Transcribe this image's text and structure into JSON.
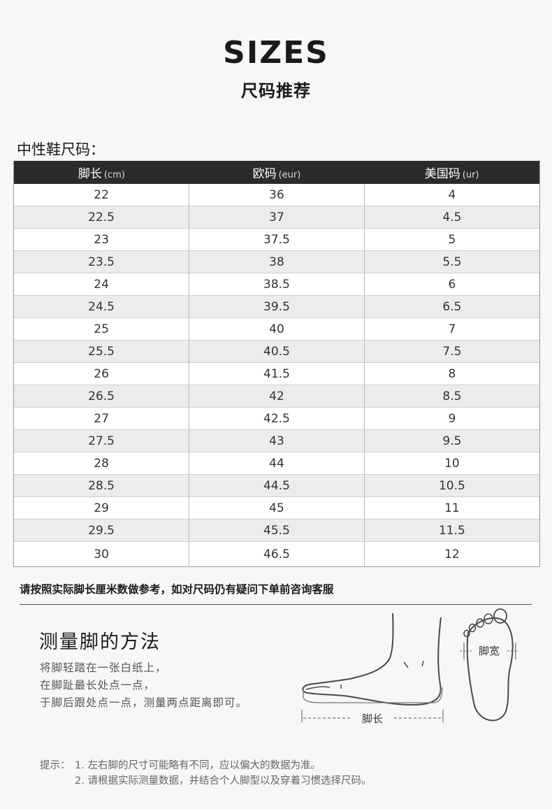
{
  "title": "SIZES",
  "subtitle": "尺码推荐",
  "section_label": "中性鞋尺码：",
  "table": {
    "headers": [
      {
        "label": "脚长",
        "unit": "(cm)"
      },
      {
        "label": "欧码",
        "unit": "(eur)"
      },
      {
        "label": "美国码",
        "unit": "(ur)"
      }
    ],
    "rows": [
      [
        "22",
        "36",
        "4"
      ],
      [
        "22.5",
        "37",
        "4.5"
      ],
      [
        "23",
        "37.5",
        "5"
      ],
      [
        "23.5",
        "38",
        "5.5"
      ],
      [
        "24",
        "38.5",
        "6"
      ],
      [
        "24.5",
        "39.5",
        "6.5"
      ],
      [
        "25",
        "40",
        "7"
      ],
      [
        "25.5",
        "40.5",
        "7.5"
      ],
      [
        "26",
        "41.5",
        "8"
      ],
      [
        "26.5",
        "42",
        "8.5"
      ],
      [
        "27",
        "42.5",
        "9"
      ],
      [
        "27.5",
        "43",
        "9.5"
      ],
      [
        "28",
        "44",
        "10"
      ],
      [
        "28.5",
        "44.5",
        "10.5"
      ],
      [
        "29",
        "45",
        "11"
      ],
      [
        "29.5",
        "45.5",
        "11.5"
      ],
      [
        "30",
        "46.5",
        "12"
      ]
    ]
  },
  "note": "请按照实际脚长厘米数做参考，如对尺码仍有疑问下单前咨询客服",
  "measure": {
    "title": "测量脚的方法",
    "lines": [
      "将脚轻踏在一张白纸上，",
      "在脚趾最长处点一点，",
      "于脚后跟处点一点，测量两点距离即可。"
    ],
    "foot_length_label": "脚长",
    "foot_width_label": "脚宽"
  },
  "tips": {
    "lead": "提示：",
    "items": [
      "1. 左右脚的尺寸可能略有不同，应以偏大的数据为准。",
      "2. 请根据实际测量数据，并结合个人脚型以及穿着习惯选择尺码。"
    ]
  }
}
